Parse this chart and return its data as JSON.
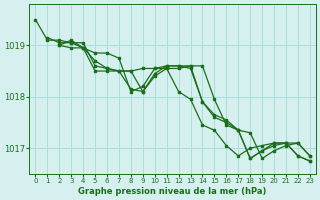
{
  "title": "Graphe pression niveau de la mer (hPa)",
  "background_color": "#d6f0f0",
  "grid_color": "#aadddd",
  "line_color": "#1a6e1a",
  "ylim": [
    1016.5,
    1019.8
  ],
  "yticks": [
    1017,
    1018,
    1019
  ],
  "xlim": [
    -0.5,
    23.5
  ],
  "xticks": [
    0,
    1,
    2,
    3,
    4,
    5,
    6,
    7,
    8,
    9,
    10,
    11,
    12,
    13,
    14,
    15,
    16,
    17,
    18,
    19,
    20,
    21,
    22,
    23
  ],
  "series": [
    {
      "x": [
        1,
        2,
        3,
        4,
        5,
        6,
        7,
        8,
        9,
        10,
        11,
        12,
        13,
        14,
        15,
        16,
        17,
        18,
        19,
        20,
        21,
        22,
        23
      ],
      "y": [
        1019.15,
        1019.05,
        1019.05,
        1018.95,
        1018.85,
        1018.85,
        1018.75,
        1018.1,
        1018.2,
        1018.55,
        1018.6,
        1018.6,
        1018.55,
        1017.9,
        1017.65,
        1017.55,
        1017.35,
        1016.8,
        1016.95,
        1017.05,
        1017.1,
        1017.1,
        1016.85
      ]
    },
    {
      "x": [
        0,
        1,
        2,
        3,
        4,
        5,
        6,
        7,
        8,
        9,
        10,
        11,
        12,
        13,
        14,
        15,
        16,
        17,
        18,
        19,
        20,
        21,
        22,
        23
      ],
      "y": [
        1019.5,
        1019.1,
        1019.1,
        1019.05,
        1019.05,
        1018.6,
        1018.55,
        1018.5,
        1018.5,
        1018.55,
        1018.55,
        1018.55,
        1018.1,
        1017.95,
        1017.45,
        1017.35,
        1017.05,
        1016.85,
        1017.0,
        1017.05,
        1017.1,
        1017.1,
        1016.85,
        1016.75
      ]
    },
    {
      "x": [
        2,
        3,
        4,
        5,
        6,
        7,
        8,
        9,
        10,
        11,
        12,
        13,
        14,
        15,
        16,
        17,
        18,
        19,
        20,
        21,
        22,
        23
      ],
      "y": [
        1019.0,
        1019.1,
        1018.95,
        1018.7,
        1018.55,
        1018.5,
        1018.15,
        1018.1,
        1018.45,
        1018.6,
        1018.6,
        1018.6,
        1017.9,
        1017.6,
        1017.5,
        1017.35,
        1016.8,
        1016.95,
        1017.1,
        1017.1,
        1016.85,
        1016.75
      ]
    },
    {
      "x": [
        2,
        3,
        4,
        5,
        6,
        7,
        8,
        9,
        10,
        11,
        12,
        13,
        14,
        15,
        16,
        17,
        18,
        19,
        20,
        21,
        22,
        23
      ],
      "y": [
        1019.0,
        1018.95,
        1018.95,
        1018.5,
        1018.5,
        1018.5,
        1018.5,
        1018.1,
        1018.4,
        1018.55,
        1018.55,
        1018.6,
        1018.6,
        1017.95,
        1017.45,
        1017.35,
        1017.3,
        1016.8,
        1016.95,
        1017.05,
        1017.1,
        1016.85
      ]
    }
  ]
}
